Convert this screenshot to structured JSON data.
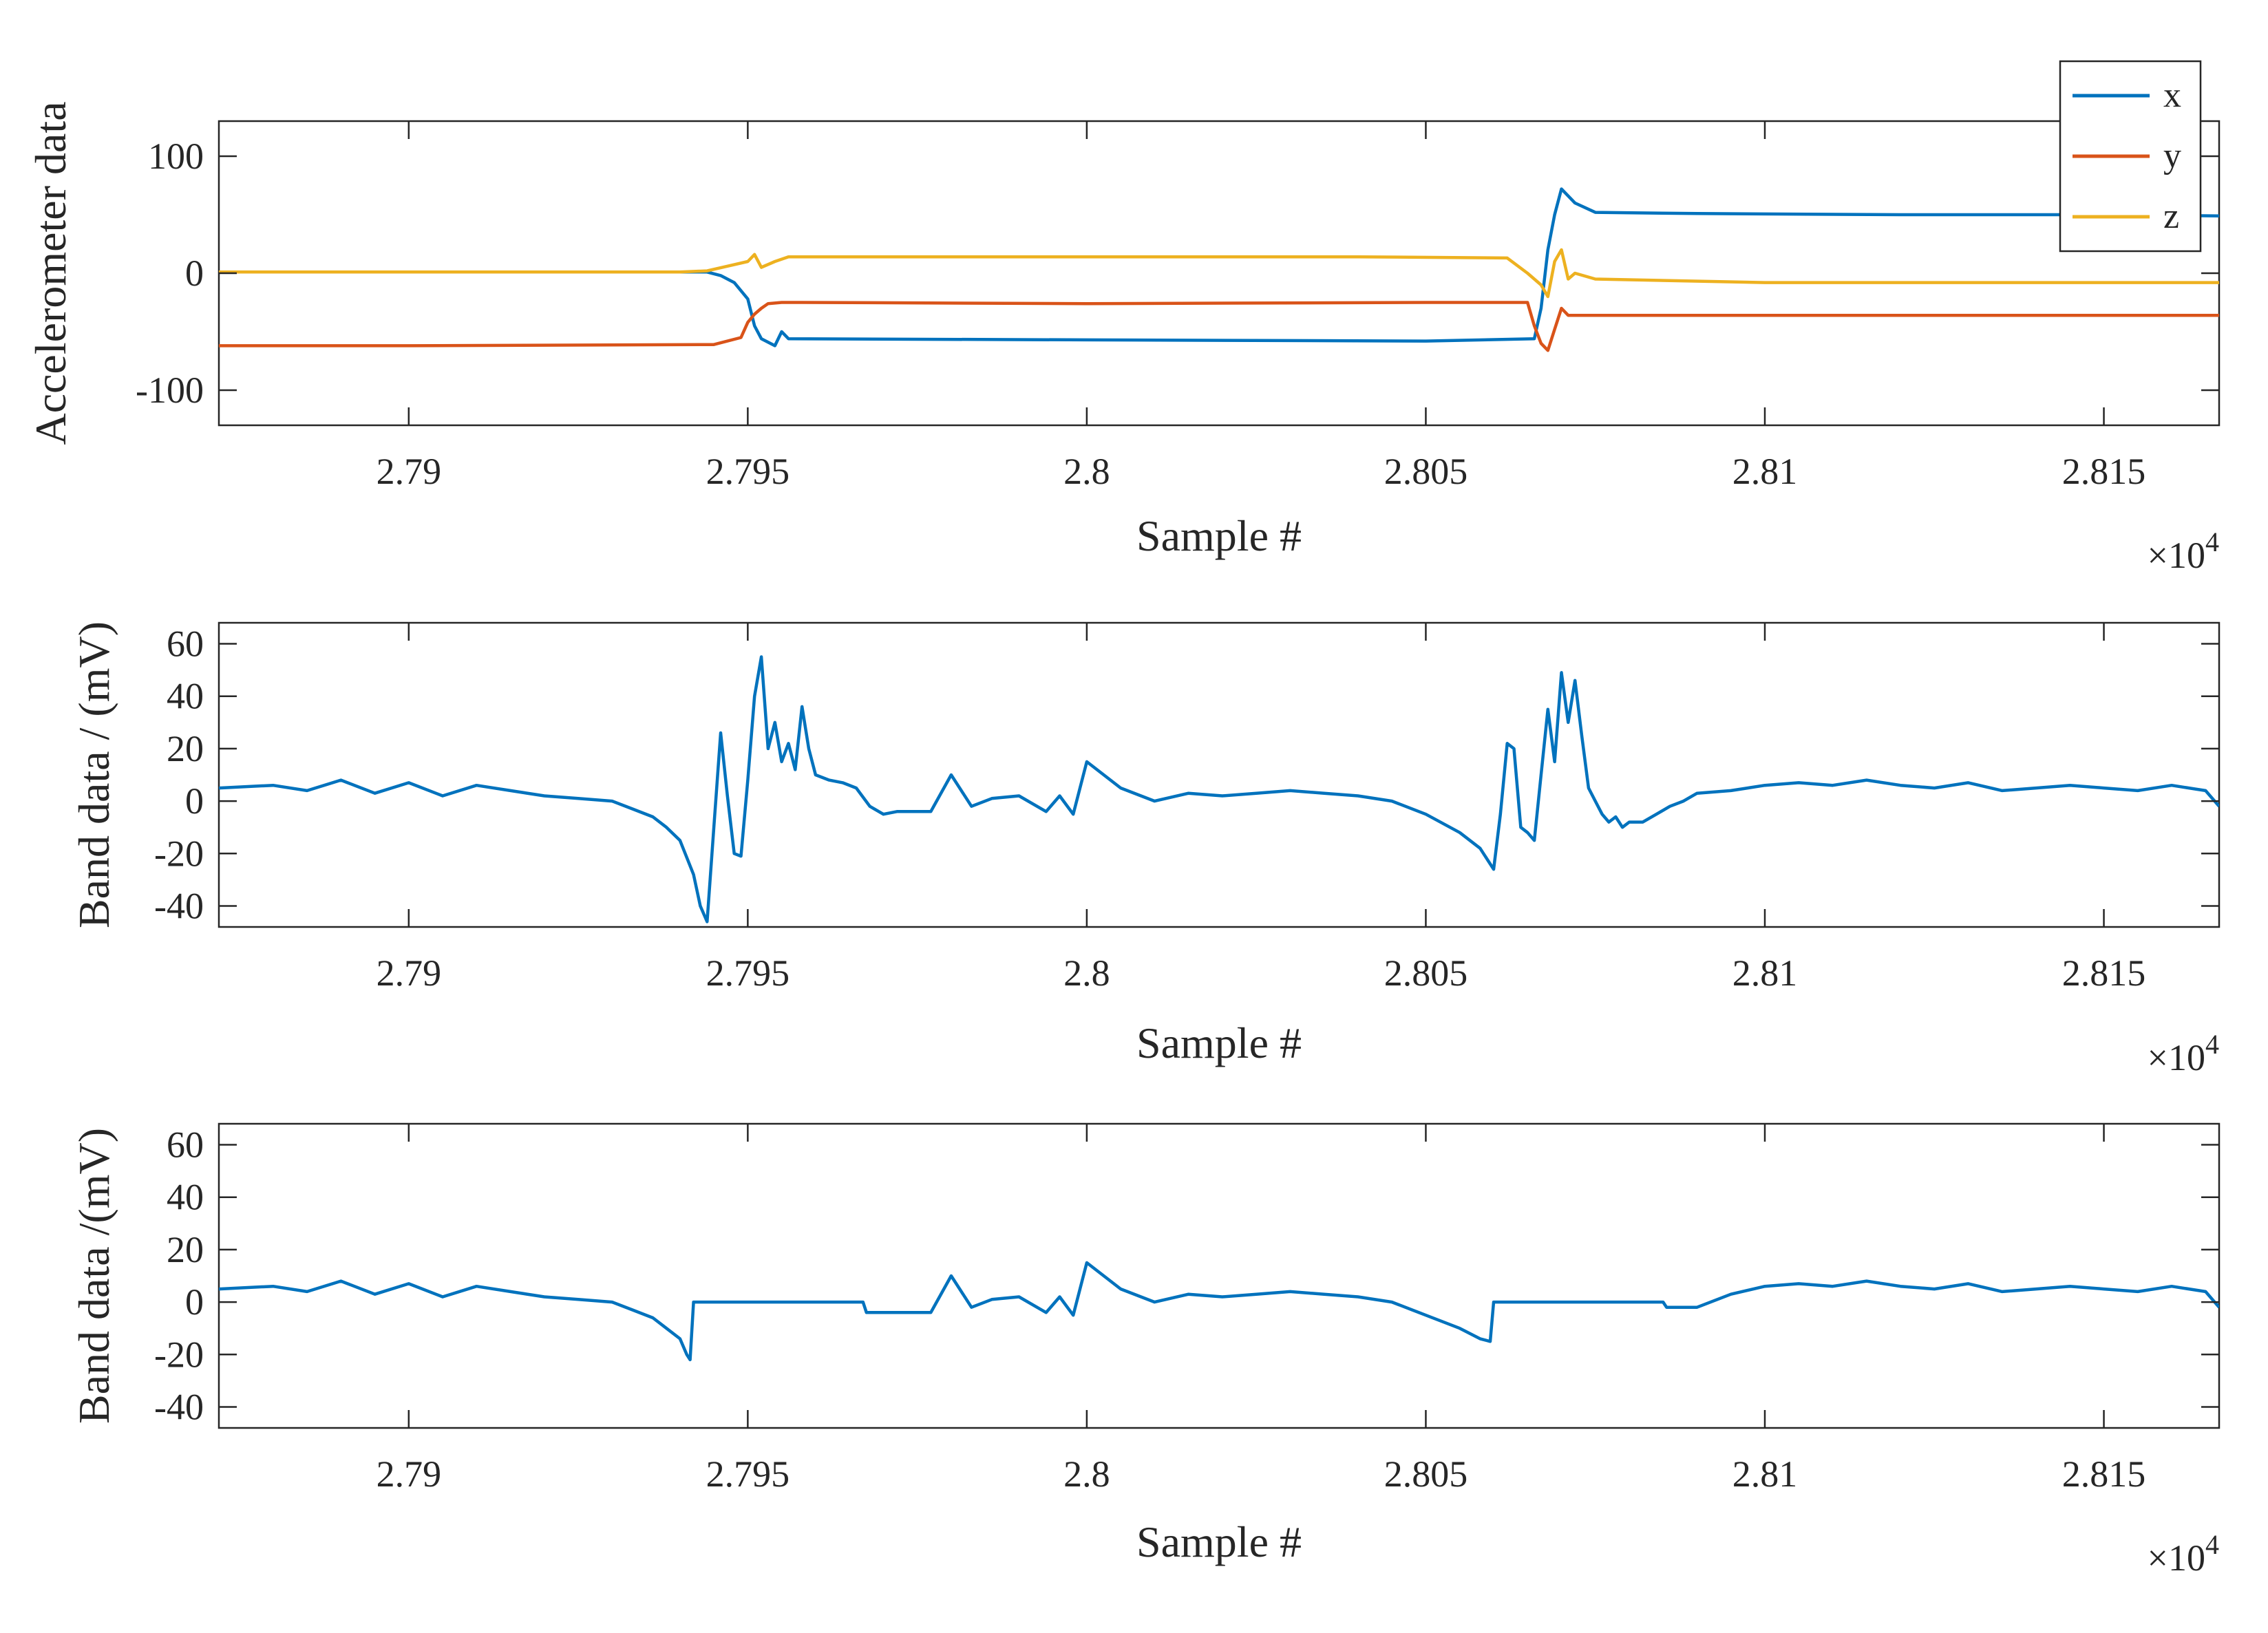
{
  "chart_data": [
    {
      "type": "line",
      "xlabel": "Sample #",
      "ylabel": "Accelerometer data",
      "xlim": [
        27872,
        28167
      ],
      "ylim": [
        -130,
        130
      ],
      "x_multiplier_label": "×10",
      "x_multiplier_exp": "4",
      "xticks": [
        27900,
        27950,
        28000,
        28050,
        28100,
        28150
      ],
      "xtick_labels": [
        "2.79",
        "2.795",
        "2.8",
        "2.805",
        "2.81",
        "2.815"
      ],
      "yticks": [
        100,
        0,
        -100
      ],
      "ytick_labels": [
        "100",
        "0",
        "-100"
      ],
      "legend": {
        "position": "top-right",
        "entries": [
          "x",
          "y",
          "z"
        ]
      },
      "series": [
        {
          "name": "x",
          "color": "#0072BD",
          "x": [
            27872,
            27944,
            27946,
            27948,
            27950,
            27951,
            27952,
            27954,
            27955,
            27956,
            28000,
            28050,
            28066,
            28067,
            28068,
            28069,
            28070,
            28072,
            28075,
            28090,
            28120,
            28150,
            28167
          ],
          "y": [
            1,
            1,
            -2,
            -8,
            -22,
            -45,
            -56,
            -62,
            -50,
            -56,
            -57,
            -58,
            -56,
            -30,
            20,
            50,
            72,
            60,
            52,
            51,
            50,
            50,
            49
          ]
        },
        {
          "name": "y",
          "color": "#D95319",
          "x": [
            27872,
            27900,
            27945,
            27949,
            27950,
            27951,
            27952,
            27953,
            27955,
            27958,
            28000,
            28050,
            28065,
            28066,
            28067,
            28068,
            28069,
            28070,
            28071,
            28075,
            28100,
            28150,
            28167
          ],
          "y": [
            -62,
            -62,
            -61,
            -55,
            -42,
            -35,
            -30,
            -26,
            -25,
            -25,
            -26,
            -25,
            -25,
            -45,
            -60,
            -66,
            -48,
            -30,
            -36,
            -36,
            -36,
            -36,
            -36
          ]
        },
        {
          "name": "z",
          "color": "#EDB120",
          "x": [
            27872,
            27940,
            27944,
            27947,
            27950,
            27951,
            27952,
            27954,
            27956,
            27960,
            28000,
            28040,
            28062,
            28065,
            28067,
            28068,
            28069,
            28070,
            28071,
            28072,
            28075,
            28100,
            28150,
            28167
          ],
          "y": [
            1,
            1,
            2,
            6,
            10,
            16,
            5,
            10,
            14,
            14,
            14,
            14,
            13,
            0,
            -10,
            -20,
            10,
            20,
            -5,
            0,
            -5,
            -8,
            -8,
            -8
          ]
        }
      ]
    },
    {
      "type": "line",
      "xlabel": "Sample #",
      "ylabel": "Band data / (mV)",
      "xlim": [
        27872,
        28167
      ],
      "ylim": [
        -48,
        68
      ],
      "x_multiplier_label": "×10",
      "x_multiplier_exp": "4",
      "xticks": [
        27900,
        27950,
        28000,
        28050,
        28100,
        28150
      ],
      "xtick_labels": [
        "2.79",
        "2.795",
        "2.8",
        "2.805",
        "2.81",
        "2.815"
      ],
      "yticks": [
        60,
        40,
        20,
        0,
        -20,
        -40
      ],
      "ytick_labels": [
        "60",
        "40",
        "20",
        "0",
        "-20",
        "-40"
      ],
      "series": [
        {
          "name": "band",
          "color": "#0072BD",
          "x": [
            27872,
            27880,
            27885,
            27890,
            27895,
            27900,
            27905,
            27910,
            27915,
            27920,
            27925,
            27930,
            27933,
            27936,
            27938,
            27940,
            27942,
            27943,
            27944,
            27945,
            27946,
            27947,
            27948,
            27949,
            27950,
            27951,
            27952,
            27953,
            27954,
            27955,
            27956,
            27957,
            27958,
            27959,
            27960,
            27962,
            27964,
            27966,
            27968,
            27970,
            27972,
            27975,
            27977,
            27980,
            27983,
            27986,
            27990,
            27994,
            27996,
            27998,
            28000,
            28005,
            28010,
            28015,
            28020,
            28025,
            28030,
            28035,
            28040,
            28045,
            28050,
            28055,
            28058,
            28060,
            28061,
            28062,
            28063,
            28064,
            28065,
            28066,
            28067,
            28068,
            28069,
            28070,
            28071,
            28072,
            28073,
            28074,
            28075,
            28076,
            28077,
            28078,
            28079,
            28080,
            28082,
            28084,
            28086,
            28088,
            28090,
            28095,
            28100,
            28105,
            28110,
            28115,
            28120,
            28125,
            28130,
            28135,
            28140,
            28145,
            28150,
            28155,
            28160,
            28165,
            28167
          ],
          "y": [
            5,
            6,
            4,
            8,
            3,
            7,
            2,
            6,
            4,
            2,
            1,
            0,
            -3,
            -6,
            -10,
            -15,
            -28,
            -40,
            -46,
            -10,
            26,
            2,
            -20,
            -21,
            8,
            40,
            55,
            20,
            30,
            15,
            22,
            12,
            36,
            20,
            10,
            8,
            7,
            5,
            -2,
            -5,
            -4,
            -4,
            -4,
            10,
            -2,
            1,
            2,
            -4,
            2,
            -5,
            15,
            5,
            0,
            3,
            2,
            3,
            4,
            3,
            2,
            0,
            -5,
            -12,
            -18,
            -26,
            -5,
            22,
            20,
            -10,
            -12,
            -15,
            10,
            35,
            15,
            49,
            30,
            46,
            25,
            5,
            0,
            -5,
            -8,
            -6,
            -10,
            -8,
            -8,
            -5,
            -2,
            0,
            3,
            4,
            6,
            7,
            6,
            8,
            6,
            5,
            7,
            4,
            5,
            6,
            5,
            4,
            6,
            4,
            -2
          ]
        }
      ]
    },
    {
      "type": "line",
      "xlabel": "Sample #",
      "ylabel": "Band data /(mV)",
      "xlim": [
        27872,
        28167
      ],
      "ylim": [
        -48,
        68
      ],
      "x_multiplier_label": "×10",
      "x_multiplier_exp": "4",
      "xticks": [
        27900,
        27950,
        28000,
        28050,
        28100,
        28150
      ],
      "xtick_labels": [
        "2.79",
        "2.795",
        "2.8",
        "2.805",
        "2.81",
        "2.815"
      ],
      "yticks": [
        60,
        40,
        20,
        0,
        -20,
        -40
      ],
      "ytick_labels": [
        "60",
        "40",
        "20",
        "0",
        "-20",
        "-40"
      ],
      "series": [
        {
          "name": "band",
          "color": "#0072BD",
          "x": [
            27872,
            27880,
            27885,
            27890,
            27895,
            27900,
            27905,
            27910,
            27915,
            27920,
            27925,
            27930,
            27933,
            27936,
            27938,
            27940,
            27941,
            27941.5,
            27942,
            27950,
            27960,
            27967,
            27967.5,
            27970,
            27975,
            27977,
            27980,
            27983,
            27986,
            27990,
            27994,
            27996,
            27998,
            28000,
            28005,
            28010,
            28015,
            28020,
            28025,
            28030,
            28035,
            28040,
            28045,
            28050,
            28055,
            28058,
            28059.5,
            28060,
            28060.5,
            28070,
            28085,
            28085.5,
            28090,
            28095,
            28100,
            28105,
            28110,
            28115,
            28120,
            28125,
            28130,
            28135,
            28140,
            28145,
            28150,
            28155,
            28160,
            28165,
            28167
          ],
          "y": [
            5,
            6,
            4,
            8,
            3,
            7,
            2,
            6,
            4,
            2,
            1,
            0,
            -3,
            -6,
            -10,
            -14,
            -20,
            -22,
            0,
            0,
            0,
            0,
            -4,
            -4,
            -4,
            -4,
            10,
            -2,
            1,
            2,
            -4,
            2,
            -5,
            15,
            5,
            0,
            3,
            2,
            3,
            4,
            3,
            2,
            0,
            -5,
            -10,
            -14,
            -15,
            0,
            0,
            0,
            0,
            -2,
            -2,
            3,
            6,
            7,
            6,
            8,
            6,
            5,
            7,
            4,
            5,
            6,
            5,
            4,
            6,
            4,
            -2
          ]
        }
      ]
    }
  ]
}
